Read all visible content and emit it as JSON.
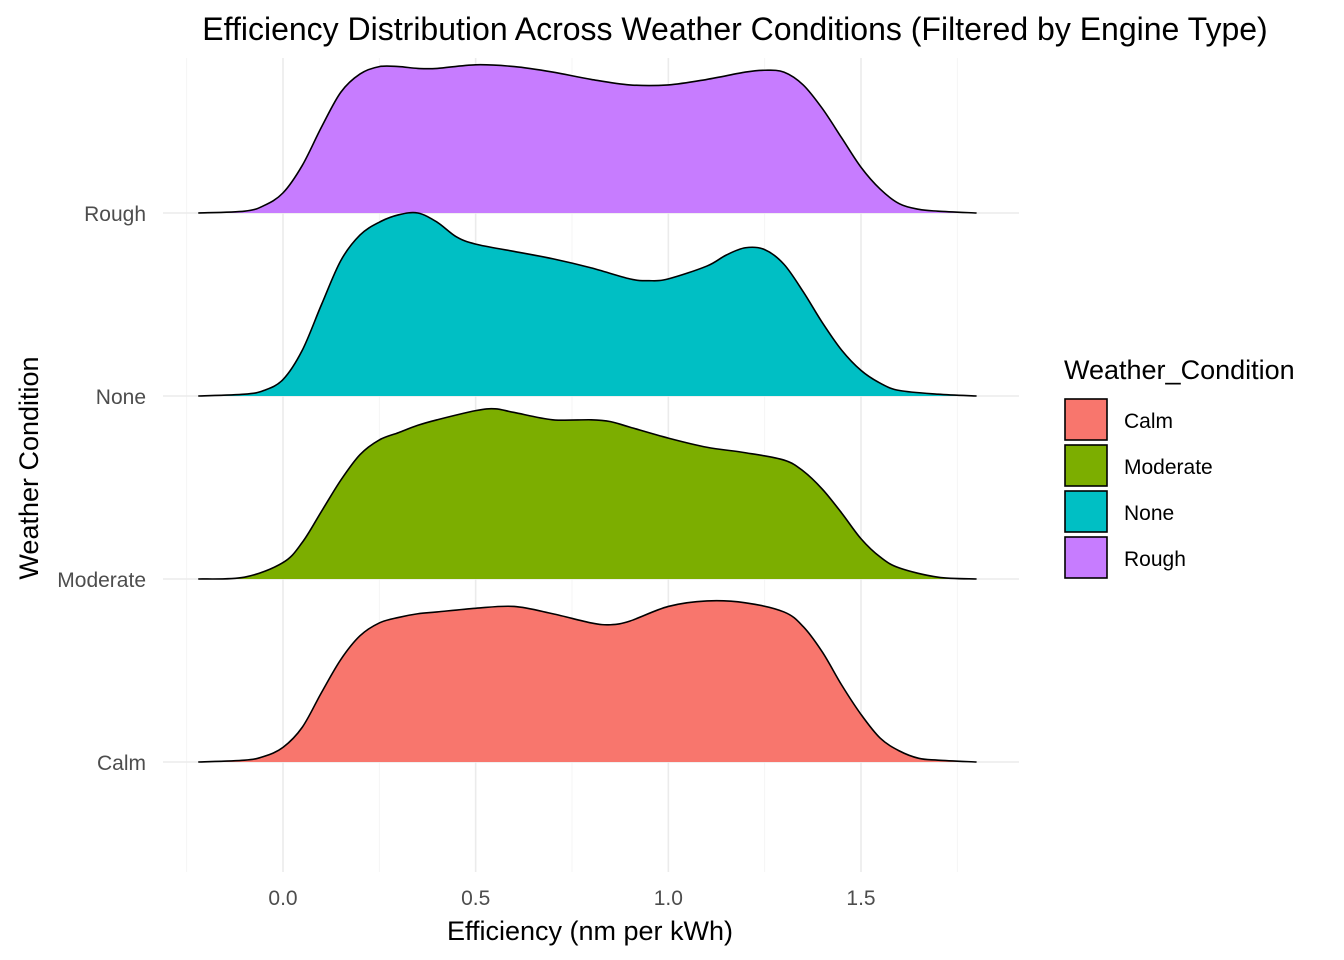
{
  "chart_data": {
    "type": "ridgeline",
    "title": "Efficiency Distribution Across Weather Conditions (Filtered by Engine Type)",
    "xlabel": "Efficiency (nm per kWh)",
    "ylabel": "Weather Condition",
    "xlim": [
      -0.25,
      1.8
    ],
    "x_ticks": [
      {
        "value": 0.0,
        "label": "0.0"
      },
      {
        "value": 0.5,
        "label": "0.5"
      },
      {
        "value": 1.0,
        "label": "1.0"
      },
      {
        "value": 1.5,
        "label": "1.5"
      }
    ],
    "x_minor_ticks": [
      -0.25,
      0.25,
      0.75,
      1.25,
      1.75
    ],
    "categories": [
      "Calm",
      "Moderate",
      "None",
      "Rough"
    ],
    "legend": {
      "title": "Weather_Condition",
      "placement": "right",
      "items": [
        {
          "label": "Calm",
          "color": "#F8766D"
        },
        {
          "label": "Moderate",
          "color": "#7CAE00"
        },
        {
          "label": "None",
          "color": "#00BFC4"
        },
        {
          "label": "Rough",
          "color": "#C77CFF"
        }
      ]
    },
    "density_scale_max": 1.0,
    "series": [
      {
        "name": "Calm",
        "color": "#F8766D",
        "x": [
          -0.22,
          -0.1,
          -0.05,
          0.0,
          0.05,
          0.1,
          0.15,
          0.2,
          0.25,
          0.3,
          0.35,
          0.4,
          0.5,
          0.6,
          0.7,
          0.8,
          0.85,
          0.9,
          1.0,
          1.1,
          1.2,
          1.3,
          1.35,
          1.4,
          1.45,
          1.5,
          1.55,
          1.6,
          1.65,
          1.7,
          1.8
        ],
        "density": [
          0.0,
          0.01,
          0.03,
          0.08,
          0.19,
          0.38,
          0.56,
          0.69,
          0.76,
          0.79,
          0.81,
          0.82,
          0.84,
          0.85,
          0.81,
          0.76,
          0.75,
          0.77,
          0.85,
          0.88,
          0.87,
          0.82,
          0.74,
          0.6,
          0.42,
          0.26,
          0.13,
          0.06,
          0.02,
          0.01,
          0.0
        ]
      },
      {
        "name": "Moderate",
        "color": "#7CAE00",
        "x": [
          -0.22,
          -0.1,
          0.0,
          0.05,
          0.1,
          0.15,
          0.2,
          0.25,
          0.3,
          0.35,
          0.4,
          0.5,
          0.55,
          0.6,
          0.7,
          0.8,
          0.85,
          0.9,
          1.0,
          1.1,
          1.2,
          1.3,
          1.35,
          1.4,
          1.45,
          1.5,
          1.55,
          1.6,
          1.7,
          1.8
        ],
        "density": [
          0.0,
          0.01,
          0.09,
          0.2,
          0.37,
          0.54,
          0.68,
          0.76,
          0.8,
          0.84,
          0.87,
          0.92,
          0.93,
          0.91,
          0.87,
          0.87,
          0.86,
          0.83,
          0.77,
          0.72,
          0.69,
          0.65,
          0.59,
          0.49,
          0.36,
          0.22,
          0.12,
          0.06,
          0.01,
          0.0
        ]
      },
      {
        "name": "None",
        "color": "#00BFC4",
        "x": [
          -0.22,
          -0.1,
          -0.05,
          0.0,
          0.05,
          0.1,
          0.15,
          0.2,
          0.25,
          0.3,
          0.35,
          0.4,
          0.45,
          0.5,
          0.6,
          0.7,
          0.8,
          0.9,
          0.95,
          1.0,
          1.1,
          1.15,
          1.2,
          1.25,
          1.3,
          1.35,
          1.4,
          1.45,
          1.5,
          1.55,
          1.6,
          1.7,
          1.8
        ],
        "density": [
          0.0,
          0.01,
          0.03,
          0.09,
          0.25,
          0.5,
          0.74,
          0.88,
          0.95,
          0.99,
          1.0,
          0.95,
          0.87,
          0.83,
          0.79,
          0.75,
          0.7,
          0.64,
          0.63,
          0.64,
          0.71,
          0.77,
          0.81,
          0.8,
          0.72,
          0.57,
          0.4,
          0.25,
          0.14,
          0.07,
          0.03,
          0.01,
          0.0
        ]
      },
      {
        "name": "Rough",
        "color": "#C77CFF",
        "x": [
          -0.22,
          -0.1,
          -0.05,
          0.0,
          0.05,
          0.1,
          0.15,
          0.2,
          0.25,
          0.3,
          0.35,
          0.4,
          0.5,
          0.6,
          0.7,
          0.8,
          0.9,
          1.0,
          1.1,
          1.2,
          1.25,
          1.3,
          1.35,
          1.4,
          1.45,
          1.5,
          1.55,
          1.6,
          1.65,
          1.7,
          1.8
        ],
        "density": [
          0.0,
          0.01,
          0.04,
          0.11,
          0.26,
          0.47,
          0.66,
          0.76,
          0.8,
          0.8,
          0.79,
          0.79,
          0.81,
          0.8,
          0.77,
          0.73,
          0.7,
          0.7,
          0.73,
          0.77,
          0.78,
          0.77,
          0.7,
          0.57,
          0.41,
          0.25,
          0.13,
          0.05,
          0.02,
          0.01,
          0.0
        ]
      }
    ]
  }
}
